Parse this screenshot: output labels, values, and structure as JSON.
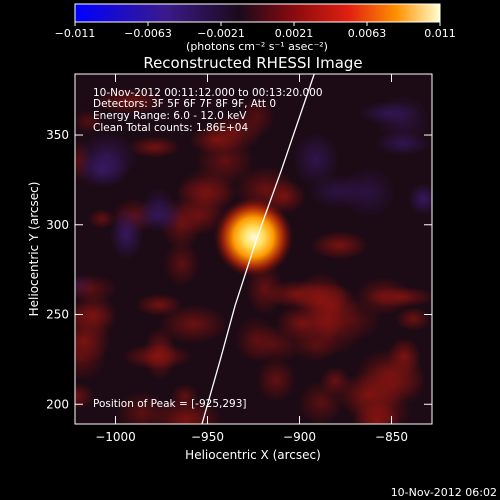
{
  "colorbar": {
    "ticks": [
      "-0.011",
      "-0.0063",
      "-0.0021",
      "0.0021",
      "0.0063",
      "0.011"
    ],
    "units": "(photons cm⁻² s⁻¹ asec⁻²)"
  },
  "title": "Reconstructed RHESSI Image",
  "info": {
    "time_range": "10-Nov-2012 00:11:12.000 to 00:13:20.000",
    "detectors": "Detectors: 3F 5F 6F 7F 8F 9F, Att 0",
    "energy": "Energy Range: 6.0 - 12.0 keV",
    "clean": "Clean     Total counts: 1.86E+04",
    "peak": "Position of Peak = [-925,293]"
  },
  "timestamp": "10-Nov-2012 06:02",
  "colors": {
    "source_core": "#fffbe0",
    "source_halo": "#ffb000",
    "background_red": "#7a1010",
    "background_purple": "#2c1440",
    "limb_line": "#ffffff"
  },
  "chart_data": {
    "type": "heatmap",
    "title": "Reconstructed RHESSI Image",
    "xlabel": "Heliocentric X (arcsec)",
    "ylabel": "Heliocentric Y (arcsec)",
    "xlim": [
      -1022,
      -828
    ],
    "ylim": [
      189,
      384
    ],
    "x_ticks": [
      -1000,
      -950,
      -900,
      -850
    ],
    "y_ticks": [
      200,
      250,
      300,
      350
    ],
    "x_tick_labels": [
      "−1000",
      "−950",
      "−900",
      "−850"
    ],
    "y_tick_labels": [
      "200",
      "250",
      "300",
      "350"
    ],
    "colorbar_range": [
      -0.011,
      0.011
    ],
    "peak": {
      "x": -925,
      "y": 293
    },
    "limb_curve": [
      {
        "x": -953,
        "y": 189
      },
      {
        "x": -943,
        "y": 225
      },
      {
        "x": -935,
        "y": 255
      },
      {
        "x": -923,
        "y": 293
      },
      {
        "x": -910,
        "y": 330
      },
      {
        "x": -892,
        "y": 384
      }
    ]
  }
}
